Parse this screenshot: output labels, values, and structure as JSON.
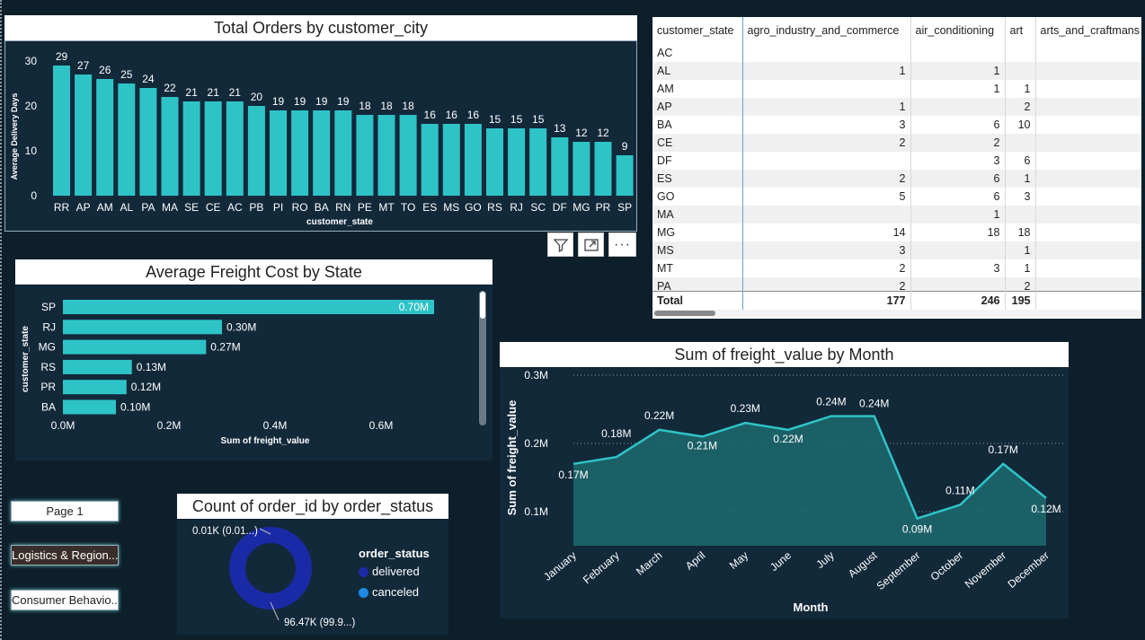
{
  "colors": {
    "teal": "#2ec4c7",
    "panel": "#12293a",
    "bg": "#0d1f2a",
    "donut_delivered": "#1a2aa6",
    "donut_canceled": "#1e88e5",
    "area": "#1d6a6e"
  },
  "orders_chart": {
    "title": "Total Orders by customer_city",
    "chart_data": {
      "type": "bar",
      "title": "Total Orders by customer_city",
      "xlabel": "customer_state",
      "ylabel": "Average Delivery Days",
      "ylim": [
        0,
        32
      ],
      "yticks": [
        "0",
        "10",
        "20",
        "30"
      ],
      "categories": [
        "RR",
        "AP",
        "AM",
        "AL",
        "PA",
        "MA",
        "SE",
        "CE",
        "AC",
        "PB",
        "PI",
        "RO",
        "BA",
        "RN",
        "PE",
        "MT",
        "TO",
        "ES",
        "MS",
        "GO",
        "RS",
        "RJ",
        "SC",
        "DF",
        "MG",
        "PR",
        "SP"
      ],
      "values": [
        29,
        27,
        26,
        25,
        24,
        22,
        21,
        21,
        21,
        20,
        19,
        19,
        19,
        19,
        18,
        18,
        18,
        16,
        16,
        16,
        15,
        15,
        15,
        13,
        12,
        12,
        9
      ],
      "labels": [
        "29",
        "27",
        "26",
        "25",
        "24",
        "22",
        "21",
        "21",
        "21",
        "20",
        "19",
        "19",
        "19",
        "19",
        "18",
        "18",
        "18",
        "16",
        "16",
        "16",
        "15",
        "15",
        "15",
        "13",
        "12",
        "12",
        "9"
      ]
    }
  },
  "toolbar": {
    "filter_icon": "filter-icon",
    "focus_icon": "focus-mode-icon",
    "more_label": "···"
  },
  "matrix": {
    "headers": [
      "customer_state",
      "agro_industry_and_commerce",
      "air_conditioning",
      "art",
      "arts_and_craftmans"
    ],
    "rows": [
      [
        "AC",
        "",
        "",
        "",
        ""
      ],
      [
        "AL",
        "1",
        "1",
        "",
        ""
      ],
      [
        "AM",
        "",
        "1",
        "1",
        ""
      ],
      [
        "AP",
        "1",
        "",
        "2",
        ""
      ],
      [
        "BA",
        "3",
        "6",
        "10",
        ""
      ],
      [
        "CE",
        "2",
        "2",
        "",
        ""
      ],
      [
        "DF",
        "",
        "3",
        "6",
        ""
      ],
      [
        "ES",
        "2",
        "6",
        "1",
        ""
      ],
      [
        "GO",
        "5",
        "6",
        "3",
        ""
      ],
      [
        "MA",
        "",
        "1",
        "",
        ""
      ],
      [
        "MG",
        "14",
        "18",
        "18",
        ""
      ],
      [
        "MS",
        "3",
        "",
        "1",
        ""
      ],
      [
        "MT",
        "2",
        "3",
        "1",
        ""
      ],
      [
        "PA",
        "2",
        "",
        "2",
        ""
      ]
    ],
    "total": [
      "Total",
      "177",
      "246",
      "195",
      ""
    ]
  },
  "freight_chart": {
    "title": "Average Freight Cost by State",
    "chart_data": {
      "type": "bar",
      "orientation": "horizontal",
      "title": "Average Freight Cost by State",
      "xlabel": "Sum of freight_value",
      "ylabel": "customer_state",
      "xlim": [
        0,
        0.75
      ],
      "xticks": [
        "0.0M",
        "0.2M",
        "0.4M",
        "0.6M"
      ],
      "categories": [
        "SP",
        "RJ",
        "MG",
        "RS",
        "PR",
        "BA"
      ],
      "values": [
        0.7,
        0.3,
        0.27,
        0.13,
        0.12,
        0.1
      ],
      "labels": [
        "0.70M",
        "0.30M",
        "0.27M",
        "0.13M",
        "0.12M",
        "0.10M"
      ]
    }
  },
  "month_chart": {
    "title": "Sum of freight_value by Month",
    "chart_data": {
      "type": "area",
      "title": "Sum of freight_value by Month",
      "xlabel": "Month",
      "ylabel": "Sum of freight_value",
      "ylim": [
        0.05,
        0.3
      ],
      "yticks": [
        "0.1M",
        "0.2M",
        "0.3M"
      ],
      "categories": [
        "January",
        "February",
        "March",
        "April",
        "May",
        "June",
        "July",
        "August",
        "September",
        "October",
        "November",
        "December"
      ],
      "values": [
        0.17,
        0.18,
        0.22,
        0.21,
        0.23,
        0.22,
        0.24,
        0.24,
        0.09,
        0.11,
        0.17,
        0.12
      ],
      "labels": [
        "0.17M",
        "0.18M",
        "0.22M",
        "0.21M",
        "0.23M",
        "0.22M",
        "0.24M",
        "0.24M",
        "0.09M",
        "0.11M",
        "0.17M",
        "0.12M"
      ]
    }
  },
  "status_chart": {
    "title": "Count of order_id by order_status",
    "chart_data": {
      "type": "pie",
      "title": "Count of order_id by order_status",
      "legend_title": "order_status",
      "categories": [
        "delivered",
        "canceled"
      ],
      "values": [
        96.47,
        0.01
      ],
      "labels": [
        "96.47K (99.9...)",
        "0.01K (0.01...)"
      ]
    }
  },
  "nav": {
    "page1": "Page 1",
    "logistics": "Logistics & Region...",
    "consumer": "Consumer Behavio..."
  }
}
